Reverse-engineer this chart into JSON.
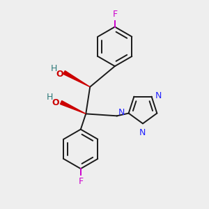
{
  "bg_color": "#eeeeee",
  "bond_color": "#1a1a1a",
  "N_color": "#2020ff",
  "O_color": "#cc0000",
  "F_color": "#cc00cc",
  "H_color": "#2d7a7a",
  "wedge_color": "#cc0000",
  "lw": 1.4,
  "ring_r": 0.95,
  "tr_r": 0.72,
  "xlim": [
    0,
    10
  ],
  "ylim": [
    0,
    10
  ]
}
